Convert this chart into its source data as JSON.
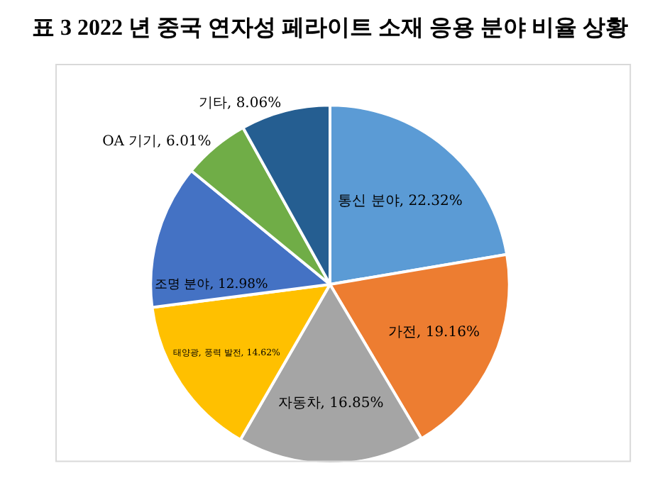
{
  "chart_data": {
    "type": "pie",
    "title": "표 3 2022 년 중국 연자성 페라이트 소재 응용 분야 비율 상황",
    "categories": [
      "통신 분야",
      "가전",
      "자동차",
      "태양광, 풍력 발전",
      "조명 분야",
      "OA 기기",
      "기타"
    ],
    "values": [
      22.32,
      19.16,
      16.85,
      14.62,
      12.98,
      6.01,
      8.06
    ],
    "value_labels": [
      "22.32%",
      "19.16%",
      "16.85%",
      "14.62%",
      "12.98%",
      "6.01%",
      "8.06%"
    ],
    "colors": [
      "#5b9bd5",
      "#ed7d31",
      "#a5a5a5",
      "#ffc000",
      "#4472c4",
      "#70ad47",
      "#255e91"
    ]
  }
}
